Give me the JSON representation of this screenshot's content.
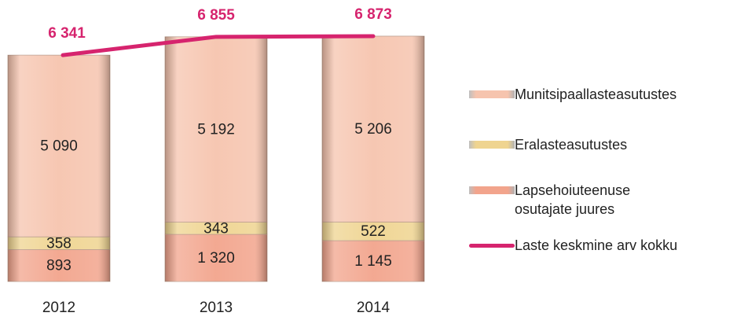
{
  "chart_data": {
    "type": "bar",
    "stacked": true,
    "categories": [
      "2012",
      "2013",
      "2014"
    ],
    "series": [
      {
        "name": "Lapsehoiuteenuse osutajate juures",
        "color": "#f2a48c",
        "values": [
          893,
          1320,
          1145
        ],
        "value_labels": [
          "893",
          "1 320",
          "1 145"
        ]
      },
      {
        "name": "Eralasteasutustes",
        "color": "#efd490",
        "values": [
          358,
          343,
          522
        ],
        "value_labels": [
          "358",
          "343",
          "522"
        ]
      },
      {
        "name": "Munitsipaallasteasutustes",
        "color": "#f6c4ae",
        "values": [
          5090,
          5192,
          5206
        ],
        "value_labels": [
          "5 090",
          "5 192",
          "5 206"
        ]
      },
      {
        "name": "Laste keskmine arv kokku",
        "type": "line",
        "color": "#d6246e",
        "values": [
          6341,
          6855,
          6873
        ],
        "value_labels": [
          "6 341",
          "6 855",
          "6 873"
        ]
      }
    ],
    "legend_order": [
      2,
      1,
      0,
      3
    ]
  }
}
